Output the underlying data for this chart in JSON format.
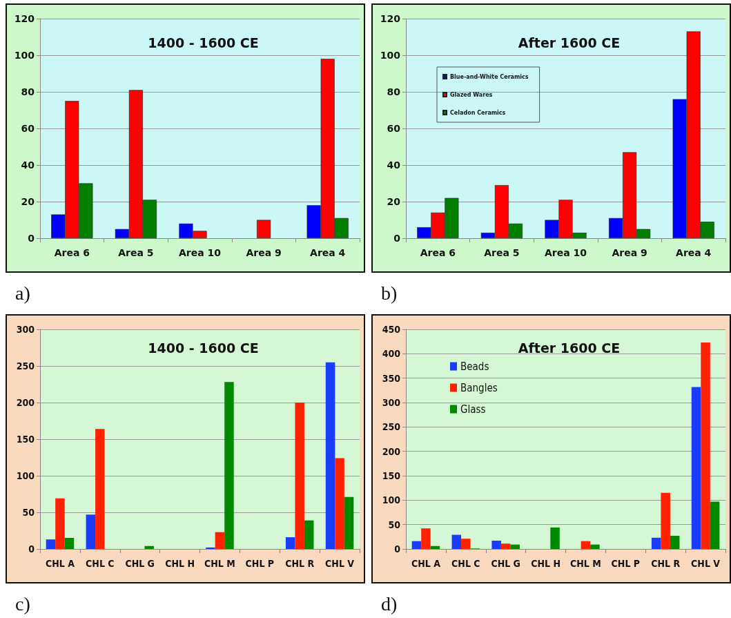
{
  "chart_data": [
    {
      "type": "bar",
      "title": "1400 - 1600 CE",
      "annotations": [
        "a)"
      ],
      "categories": [
        "Area 6",
        "Area 5",
        "Area 10",
        "Area 9",
        "Area 4"
      ],
      "series": [
        {
          "color": "#0000ff",
          "values": [
            13,
            5,
            8,
            0,
            18
          ]
        },
        {
          "color": "#ff0000",
          "values": [
            75,
            81,
            4,
            10,
            98
          ]
        },
        {
          "color": "#007f00",
          "values": [
            30,
            21,
            0,
            0,
            11
          ]
        }
      ],
      "ylim": [
        0,
        120
      ],
      "yticks": [
        0,
        20,
        40,
        60,
        80,
        100,
        120
      ],
      "grid": "y",
      "legend": false
    },
    {
      "type": "bar",
      "title": "After 1600 CE",
      "annotations": [
        "b)"
      ],
      "categories": [
        "Area 6",
        "Area 5",
        "Area 10",
        "Area 9",
        "Area 4"
      ],
      "series": [
        {
          "name": "Blue-and-White Ceramics",
          "color": "#0000ff",
          "values": [
            6,
            3,
            10,
            11,
            76
          ]
        },
        {
          "name": "Glazed Wares",
          "color": "#ff0000",
          "values": [
            14,
            29,
            21,
            47,
            113
          ]
        },
        {
          "name": "Celadon Ceramics",
          "color": "#007f00",
          "values": [
            22,
            8,
            3,
            5,
            9
          ]
        }
      ],
      "ylim": [
        0,
        120
      ],
      "yticks": [
        0,
        20,
        40,
        60,
        80,
        100,
        120
      ],
      "grid": "y",
      "legend": "top left"
    },
    {
      "type": "bar",
      "title": "1400 - 1600 CE",
      "annotations": [
        "c)"
      ],
      "categories": [
        "CHL A",
        "CHL C",
        "CHL G",
        "CHL H",
        "CHL M",
        "CHL P",
        "CHL R",
        "CHL V"
      ],
      "series": [
        {
          "color": "#1a3cff",
          "values": [
            13,
            47,
            0,
            0,
            2,
            0,
            16,
            255
          ]
        },
        {
          "color": "#ff2200",
          "values": [
            69,
            164,
            0,
            0,
            23,
            0,
            200,
            124
          ]
        },
        {
          "color": "#008a00",
          "values": [
            15,
            0,
            4,
            0,
            228,
            0,
            39,
            71
          ]
        }
      ],
      "ylim": [
        0,
        300
      ],
      "yticks": [
        0,
        50,
        100,
        150,
        200,
        250,
        300
      ],
      "grid": "y",
      "legend": false
    },
    {
      "type": "bar",
      "title": "After 1600 CE",
      "annotations": [
        "d)"
      ],
      "categories": [
        "CHL A",
        "CHL C",
        "CHL G",
        "CHL H",
        "CHL M",
        "CHL P",
        "CHL R",
        "CHL V"
      ],
      "series": [
        {
          "name": "Beads",
          "color": "#1a3cff",
          "values": [
            16,
            29,
            17,
            0,
            0,
            0,
            23,
            332
          ]
        },
        {
          "name": "Bangles",
          "color": "#ff2200",
          "values": [
            42,
            21,
            11,
            0,
            16,
            0,
            115,
            423
          ]
        },
        {
          "name": "Glass",
          "color": "#008a00",
          "values": [
            6,
            1,
            9,
            44,
            9,
            0,
            27,
            97
          ]
        }
      ],
      "ylim": [
        0,
        450
      ],
      "yticks": [
        0,
        50,
        100,
        150,
        200,
        250,
        300,
        350,
        400,
        450
      ],
      "grid": "y",
      "legend": "top left"
    }
  ]
}
